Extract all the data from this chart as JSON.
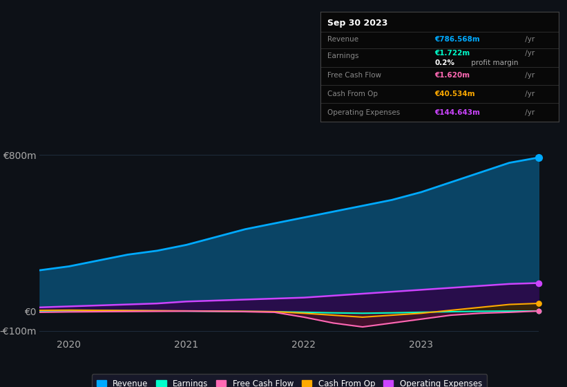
{
  "background_color": "#0d1117",
  "plot_bg_color": "#0d1117",
  "grid_color": "#1e2a3a",
  "x_years": [
    2019.75,
    2020.0,
    2020.25,
    2020.5,
    2020.75,
    2021.0,
    2021.25,
    2021.5,
    2021.75,
    2022.0,
    2022.25,
    2022.5,
    2022.75,
    2023.0,
    2023.25,
    2023.5,
    2023.75,
    2024.0
  ],
  "revenue": [
    210,
    230,
    260,
    290,
    310,
    340,
    380,
    420,
    450,
    480,
    510,
    540,
    570,
    610,
    660,
    710,
    760,
    787
  ],
  "earnings": [
    2,
    3,
    4,
    3,
    2,
    1,
    0,
    -1,
    -2,
    -5,
    -8,
    -10,
    -8,
    -5,
    -2,
    0,
    1,
    1.722
  ],
  "free_cash_flow": [
    -5,
    -3,
    -2,
    -1,
    0,
    1,
    0,
    -2,
    -5,
    -30,
    -60,
    -80,
    -60,
    -40,
    -20,
    -10,
    -5,
    1.62
  ],
  "cash_from_op": [
    5,
    6,
    5,
    4,
    3,
    2,
    1,
    0,
    -2,
    -10,
    -20,
    -30,
    -20,
    -10,
    5,
    20,
    35,
    40.534
  ],
  "operating_expenses": [
    20,
    25,
    30,
    35,
    40,
    50,
    55,
    60,
    65,
    70,
    80,
    90,
    100,
    110,
    120,
    130,
    140,
    144.643
  ],
  "revenue_color": "#00aaff",
  "revenue_fill": "#0a4a6e",
  "earnings_color": "#00ffcc",
  "earnings_fill": "#003344",
  "free_cash_flow_color": "#ff69b4",
  "free_cash_flow_fill": "#4a1030",
  "cash_from_op_color": "#ffaa00",
  "cash_from_op_fill": "#3a2a00",
  "operating_expenses_color": "#cc44ff",
  "operating_expenses_fill": "#2a0a4a",
  "ylim_min": -130,
  "ylim_max": 900,
  "ylabel_800": "€800m",
  "ylabel_0": "€0",
  "ylabel_neg100": "-€100m",
  "info_box": {
    "date": "Sep 30 2023",
    "revenue_label": "Revenue",
    "revenue_value": "€786.568m",
    "revenue_color": "#00aaff",
    "earnings_label": "Earnings",
    "earnings_value": "€1.722m",
    "earnings_color": "#00ffcc",
    "margin_text": "0.2%",
    "margin_suffix": " profit margin",
    "free_cash_flow_label": "Free Cash Flow",
    "free_cash_flow_value": "€1.620m",
    "free_cash_flow_color": "#ff69b4",
    "cash_from_op_label": "Cash From Op",
    "cash_from_op_value": "€40.534m",
    "cash_from_op_color": "#ffaa00",
    "op_expenses_label": "Operating Expenses",
    "op_expenses_value": "€144.643m",
    "op_expenses_color": "#cc44ff"
  },
  "legend": [
    {
      "label": "Revenue",
      "color": "#00aaff"
    },
    {
      "label": "Earnings",
      "color": "#00ffcc"
    },
    {
      "label": "Free Cash Flow",
      "color": "#ff69b4"
    },
    {
      "label": "Cash From Op",
      "color": "#ffaa00"
    },
    {
      "label": "Operating Expenses",
      "color": "#cc44ff"
    }
  ]
}
